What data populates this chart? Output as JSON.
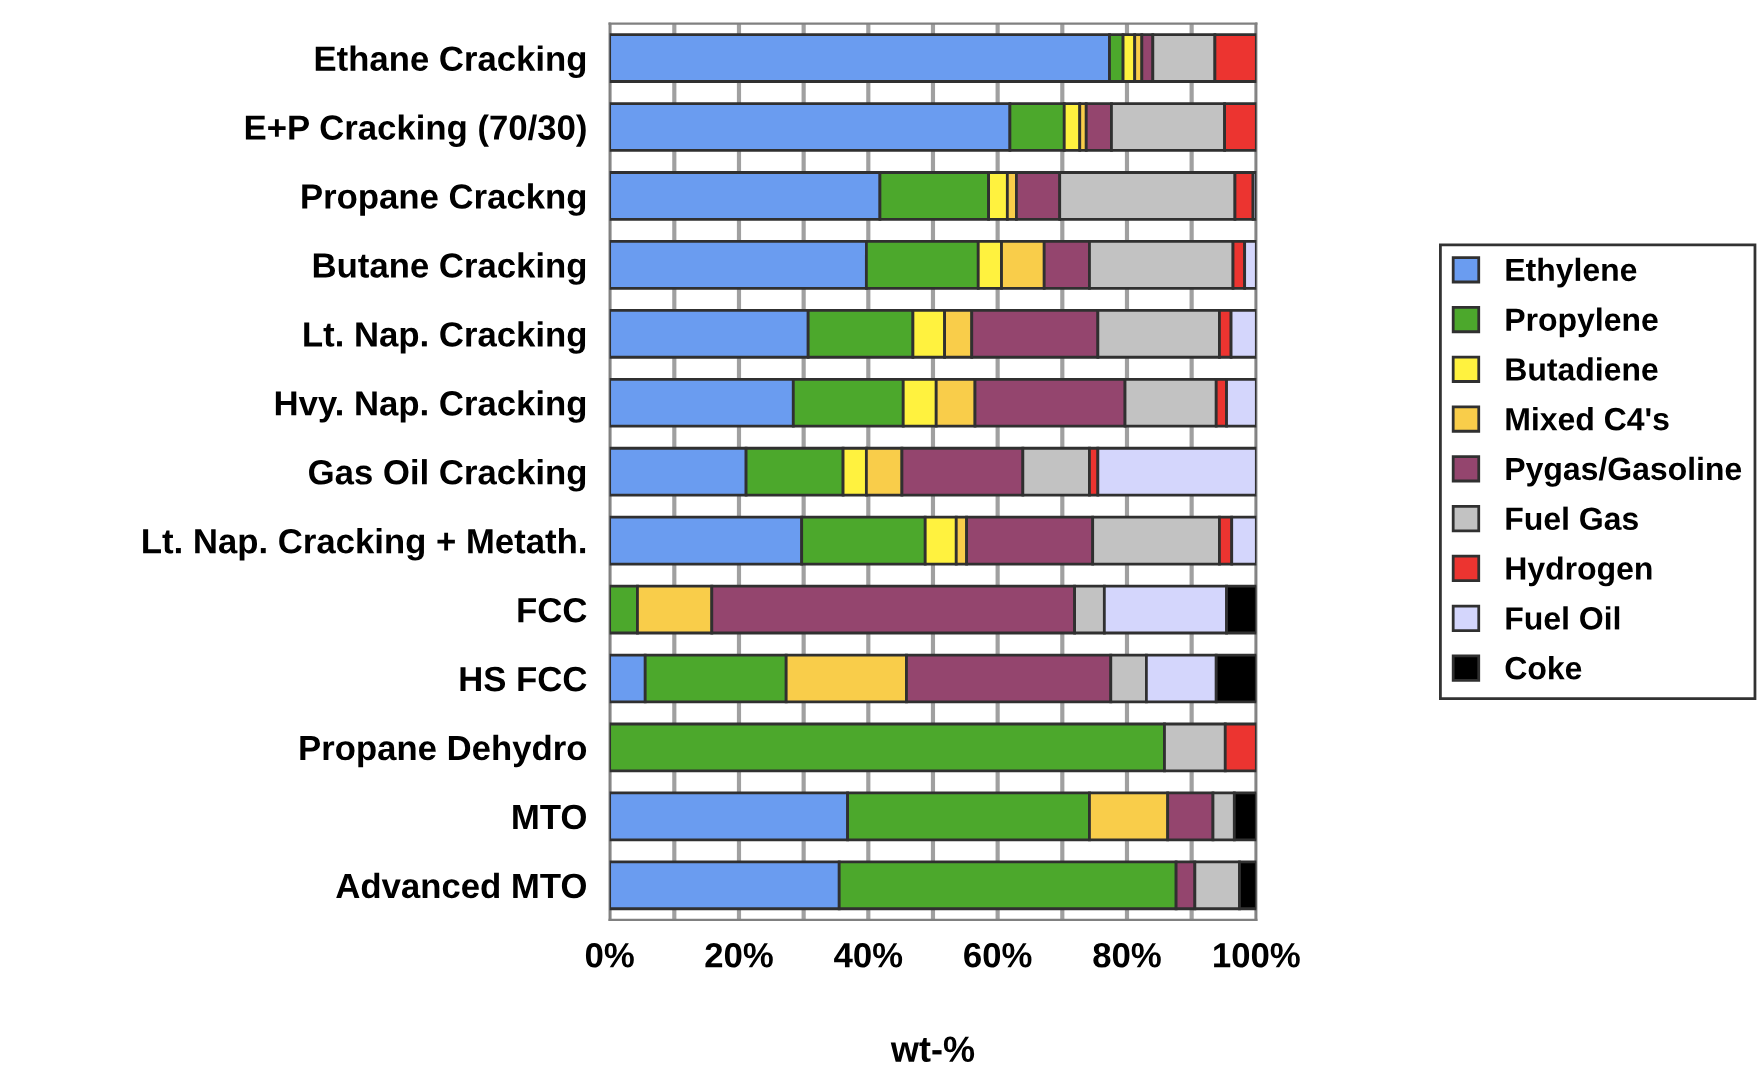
{
  "chart_data": {
    "type": "bar",
    "orientation": "horizontal",
    "stacked": true,
    "xlabel": "wt-%",
    "categories": [
      "Ethane Cracking",
      "E+P Cracking (70/30)",
      "Propane Crackng",
      "Butane Cracking",
      "Lt. Nap. Cracking",
      "Hvy. Nap. Cracking",
      "Gas Oil Cracking",
      "Lt. Nap. Cracking + Metath.",
      "FCC",
      "HS FCC",
      "Propane Dehydro",
      "MTO",
      "Advanced MTO"
    ],
    "series": [
      {
        "name": "Ethylene",
        "color": "#6a9cf0",
        "values": [
          77.3,
          61.9,
          41.8,
          39.7,
          30.7,
          28.4,
          21.1,
          29.7,
          null,
          5.5,
          null,
          36.8,
          35.5
        ]
      },
      {
        "name": "Propylene",
        "color": "#4ca82c",
        "values": [
          2.1,
          8.4,
          16.8,
          17.3,
          16.2,
          17.0,
          15.0,
          19.1,
          4.3,
          21.8,
          85.8,
          37.4,
          52.1
        ]
      },
      {
        "name": "Butadiene",
        "color": "#fff23f",
        "values": [
          1.8,
          2.4,
          2.9,
          3.6,
          4.9,
          5.1,
          3.6,
          4.8,
          null,
          null,
          null,
          null,
          null
        ]
      },
      {
        "name": "Mixed C4's",
        "color": "#f9cd4a",
        "values": [
          1.1,
          1.0,
          1.4,
          6.6,
          4.2,
          6.0,
          5.5,
          1.6,
          11.5,
          18.6,
          null,
          12.1,
          null
        ]
      },
      {
        "name": "Pygas/Gasoline",
        "color": "#94456e",
        "values": [
          1.7,
          3.9,
          6.7,
          7.0,
          19.5,
          23.2,
          18.7,
          19.5,
          56.1,
          31.6,
          null,
          7.0,
          2.9
        ]
      },
      {
        "name": "Fuel Gas",
        "color": "#c2c2c2",
        "values": [
          9.6,
          17.5,
          27.1,
          22.2,
          18.8,
          14.1,
          10.3,
          19.6,
          4.6,
          5.5,
          9.4,
          3.3,
          6.9
        ]
      },
      {
        "name": "Hydrogen",
        "color": "#ec3430",
        "values": [
          6.4,
          4.9,
          2.8,
          1.8,
          1.8,
          1.6,
          1.3,
          1.9,
          null,
          null,
          4.8,
          null,
          null
        ]
      },
      {
        "name": "Fuel Oil",
        "color": "#d4d6fc",
        "values": [
          null,
          null,
          0.5,
          1.8,
          3.9,
          4.6,
          24.5,
          3.8,
          18.9,
          10.8,
          null,
          null,
          null
        ]
      },
      {
        "name": "Coke",
        "color": "#000000",
        "values": [
          null,
          null,
          null,
          null,
          null,
          null,
          null,
          null,
          4.6,
          6.2,
          null,
          3.4,
          2.6
        ]
      }
    ],
    "xlim": [
      0,
      100
    ],
    "xticks": [
      {
        "value": 0,
        "label": "0%"
      },
      {
        "value": 10,
        "label": null
      },
      {
        "value": 20,
        "label": "20%"
      },
      {
        "value": 30,
        "label": null
      },
      {
        "value": 40,
        "label": "40%"
      },
      {
        "value": 50,
        "label": null
      },
      {
        "value": 60,
        "label": "60%"
      },
      {
        "value": 70,
        "label": null
      },
      {
        "value": 80,
        "label": "80%"
      },
      {
        "value": 90,
        "label": null
      },
      {
        "value": 100,
        "label": "100%"
      }
    ],
    "grid": "x",
    "legend": "right"
  }
}
